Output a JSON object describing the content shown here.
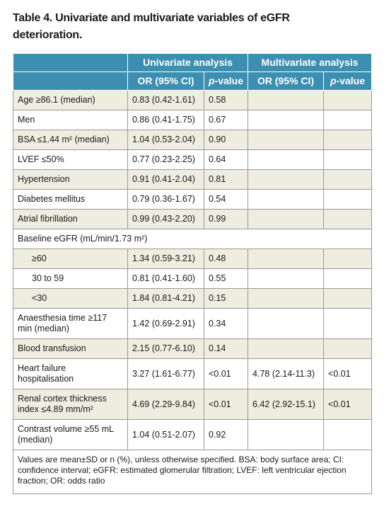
{
  "title": "Table 4. Univariate and multivariate variables of eGFR deterioration.",
  "table": {
    "group_headers": [
      "Univariate analysis",
      "Multivariate analysis"
    ],
    "column_headers": [
      "OR (95% CI)",
      "p-value",
      "OR (95% CI)",
      "p-value"
    ],
    "rows": [
      {
        "cells": [
          "Age ≥86.1 (median)",
          "0.83 (0.42-1.61)",
          "0.58",
          null,
          null
        ]
      },
      {
        "cells": [
          "Men",
          "0.86 (0.41-1.75)",
          "0.67",
          null,
          null
        ]
      },
      {
        "cells": [
          "BSA ≤1.44 m² (median)",
          "1.04 (0.53-2.04)",
          "0.90",
          null,
          null
        ]
      },
      {
        "cells": [
          "LVEF ≤50%",
          "0.77 (0.23-2.25)",
          "0.64",
          null,
          null
        ]
      },
      {
        "cells": [
          "Hypertension",
          "0.91 (0.41-2.04)",
          "0.81",
          null,
          null
        ]
      },
      {
        "cells": [
          "Diabetes mellitus",
          "0.79 (0.36-1.67)",
          "0.54",
          null,
          null
        ]
      },
      {
        "cells": [
          "Atrial fibrillation",
          "0.99 (0.43-2.20)",
          "0.99",
          null,
          null
        ]
      },
      {
        "heading": "Baseline eGFR (mL/min/1.73 m²)",
        "subrows": [
          [
            "≥60",
            "1.34 (0.59-3.21)",
            "0.48",
            null,
            null
          ],
          [
            "30 to 59",
            "0.81 (0.41-1.60)",
            "0.55",
            null,
            null
          ],
          [
            "<30",
            "1.84 (0.81-4.21)",
            "0.15",
            null,
            null
          ]
        ]
      },
      {
        "cells": [
          "Anaesthesia time ≥117 min (median)",
          "1.42 (0.69-2.91)",
          "0.34",
          null,
          null
        ]
      },
      {
        "cells": [
          "Blood transfusion",
          "2.15 (0.77-6.10)",
          "0.14",
          null,
          null
        ]
      },
      {
        "cells": [
          "Heart failure hospitalisation",
          "3.27 (1.61-6.77)",
          "<0.01",
          "4.78 (2.14-11.3)",
          "<0.01"
        ]
      },
      {
        "cells": [
          "Renal cortex thickness index ≤4.89 mm/m²",
          "4.69 (2.29-9.84)",
          "<0.01",
          "6.42 (2.92-15.1)",
          "<0.01"
        ]
      },
      {
        "cells": [
          "Contrast volume ≥55 mL (median)",
          "1.04 (0.51-2.07)",
          "0.92",
          null,
          null
        ]
      }
    ],
    "footnote": "Values are mean±SD or n (%), unless otherwise specified. BSA: body surface area; CI: confidence interval; eGFR: estimated glomerular filtration; LVEF: left ventricular ejection fraction; OR: odds ratio"
  }
}
